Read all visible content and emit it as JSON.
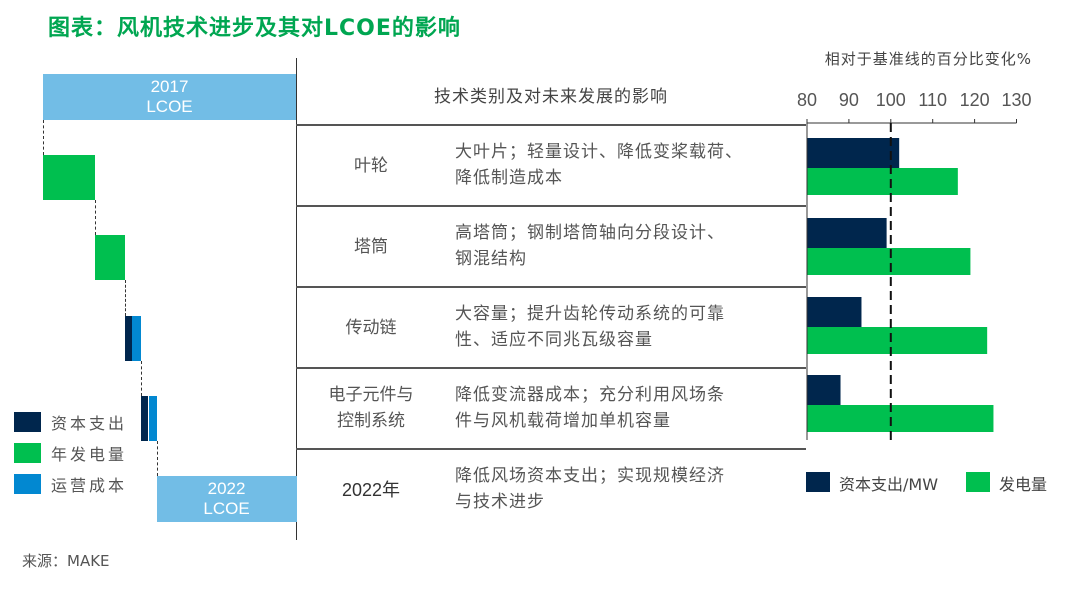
{
  "title": "图表：风机技术进步及其对LCOE的影响",
  "source": "来源：MAKE",
  "colors": {
    "capex": "#00264d",
    "energy": "#00bf4f",
    "opex": "#0288d1",
    "lcoe": "#72bde6",
    "title": "#00a651"
  },
  "table": {
    "header": "技术类别及对未来发展的影响",
    "rows": [
      {
        "category": [
          "叶轮"
        ],
        "description": [
          "大叶片；轻量设计、降低变桨载荷、",
          "降低制造成本"
        ]
      },
      {
        "category": [
          "塔筒"
        ],
        "description": [
          "高塔筒；钢制塔筒轴向分段设计、",
          "钢混结构"
        ]
      },
      {
        "category": [
          "传动链"
        ],
        "description": [
          "大容量；提升齿轮传动系统的可靠",
          "性、适应不同兆瓦级容量"
        ]
      },
      {
        "category": [
          "电子元件与",
          "控制系统"
        ],
        "description": [
          "降低变流器成本；充分利用风场条",
          "件与风机载荷增加单机容量"
        ]
      },
      {
        "category": [
          "2022年"
        ],
        "description": [
          "降低风场资本支出；实现规模经济",
          "与技术进步"
        ]
      }
    ]
  },
  "chart_data": [
    {
      "type": "waterfall",
      "start_label": [
        "2017",
        "LCOE"
      ],
      "end_label": [
        "2022",
        "LCOE"
      ],
      "legend": [
        {
          "name": "资本支出",
          "color": "#00264d"
        },
        {
          "name": "年发电量",
          "color": "#00bf4f"
        },
        {
          "name": "运营成本",
          "color": "#0288d1"
        }
      ],
      "legend_position": "bottom-left",
      "start_value": 100,
      "steps": [
        {
          "category": "叶轮",
          "年发电量": 20.6
        },
        {
          "category": "塔筒",
          "年发电量": 11.9
        },
        {
          "category": "传动链",
          "资本支出": 2.8,
          "运营成本": 3.6
        },
        {
          "category": "电子元件与控制系统",
          "资本支出": 2.8,
          "运营成本": 3.2
        }
      ],
      "end_value": 55.3
    },
    {
      "type": "bar",
      "orientation": "horizontal",
      "xlabel": "相对于基准线的百分比变化%",
      "xlim": [
        80,
        130
      ],
      "xticks": [
        "80",
        "90",
        "100",
        "110",
        "120",
        "130"
      ],
      "reference_line": 100,
      "categories": [
        "叶轮",
        "塔筒",
        "传动链",
        "电子元件与控制系统"
      ],
      "series": [
        {
          "name": "资本支出/MW",
          "color": "#00264d",
          "values": [
            102,
            99,
            93,
            88
          ]
        },
        {
          "name": "发电量",
          "color": "#00bf4f",
          "values": [
            116,
            119,
            123,
            124.5
          ]
        }
      ],
      "legend_position": "bottom"
    }
  ]
}
